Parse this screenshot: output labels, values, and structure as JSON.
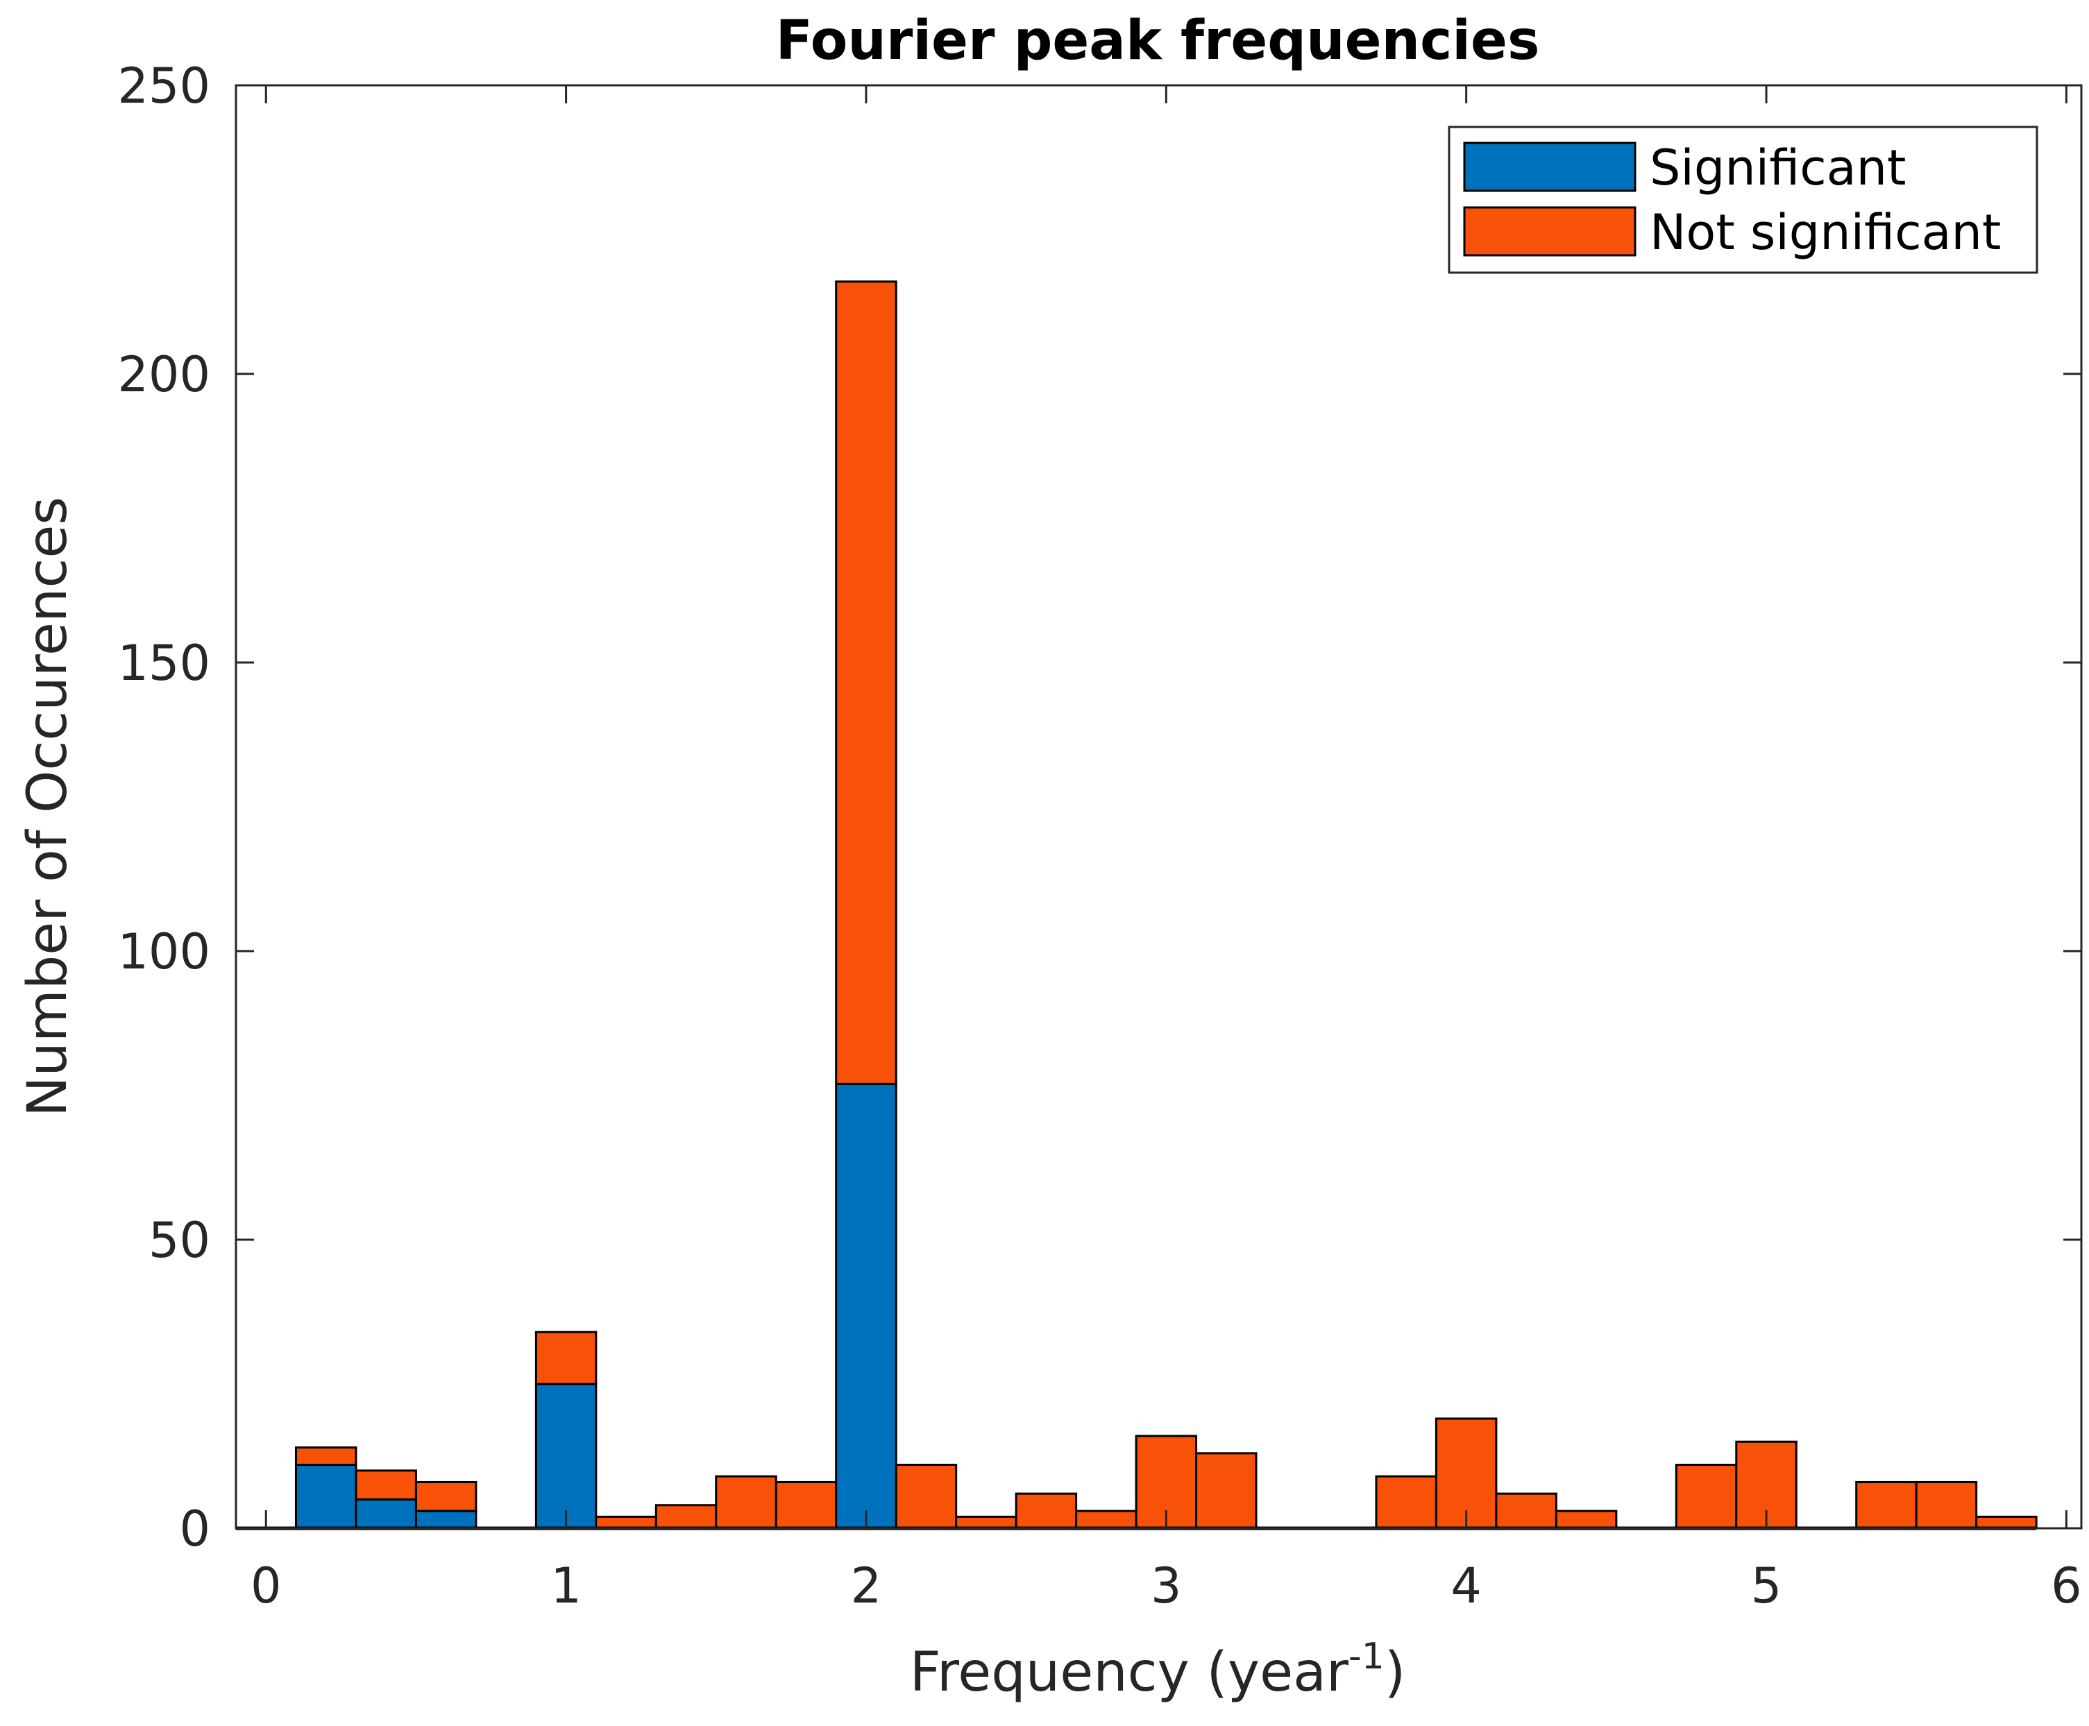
{
  "chart_data": {
    "type": "bar",
    "stacked": true,
    "title": "Fourier peak frequencies",
    "xlabel": "Frequency (year",
    "xlabel_superscript": "-1",
    "xlabel_suffix": ")",
    "ylabel": "Number of Occurences",
    "xlim": [
      -0.1,
      6.05
    ],
    "ylim": [
      0,
      250
    ],
    "bin_width": 0.2,
    "x_ticks": [
      0,
      1,
      2,
      3,
      4,
      5,
      6
    ],
    "y_ticks": [
      0,
      50,
      100,
      150,
      200,
      250
    ],
    "bin_centers": [
      0.2,
      0.4,
      0.6,
      1.0,
      1.2,
      1.4,
      1.6,
      1.8,
      2.0,
      2.2,
      2.4,
      2.6,
      2.8,
      3.0,
      3.2,
      3.8,
      4.0,
      4.2,
      4.4,
      4.8,
      5.0,
      5.4,
      5.6,
      5.8
    ],
    "series": [
      {
        "name": "Significant",
        "color": "#0072BD",
        "values": [
          11,
          5,
          3,
          25,
          0,
          0,
          0,
          0,
          77,
          0,
          0,
          0,
          0,
          0,
          0,
          0,
          0,
          0,
          0,
          0,
          0,
          0,
          0,
          0
        ]
      },
      {
        "name": "Not significant",
        "color": "#F85208",
        "values": [
          3,
          5,
          5,
          9,
          2,
          4,
          9,
          8,
          139,
          11,
          2,
          6,
          3,
          16,
          13,
          9,
          19,
          6,
          3,
          11,
          15,
          8,
          8,
          2
        ]
      }
    ],
    "legend_position": "top-right",
    "grid": false
  }
}
